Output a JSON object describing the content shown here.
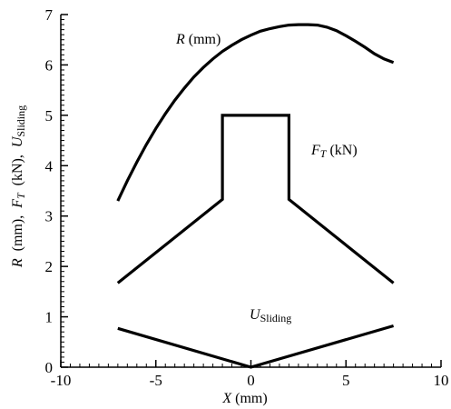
{
  "chart_data": {
    "type": "line",
    "xlabel": {
      "var": "X",
      "unit": " (mm)"
    },
    "ylabel": {
      "r_var": "R",
      "r_unit": "  (mm),  ",
      "ft_var": "F",
      "ft_sub": "T",
      "ft_unit": "  (kN),  ",
      "u_var": "U",
      "u_sub": "Sliding"
    },
    "xlim": [
      -10,
      10
    ],
    "ylim": [
      0,
      7
    ],
    "xticks": [
      "-10",
      "-5",
      "0",
      "5",
      "10"
    ],
    "yticks": [
      "0",
      "1",
      "2",
      "3",
      "4",
      "5",
      "6",
      "7"
    ],
    "grid": false,
    "legend": "none",
    "series": [
      {
        "label": {
          "var": "R",
          "unit": " (mm)"
        },
        "color": "#000000",
        "x": [
          -7,
          -6.5,
          -6,
          -5.5,
          -5,
          -4.5,
          -4,
          -3.5,
          -3,
          -2.5,
          -2,
          -1.5,
          -1,
          -0.5,
          0,
          0.5,
          1,
          1.5,
          2,
          2.5,
          3,
          3.5,
          4,
          4.5,
          5,
          5.5,
          6,
          6.5,
          7,
          7.5
        ],
        "y": [
          3.3,
          3.7,
          4.07,
          4.42,
          4.74,
          5.03,
          5.3,
          5.54,
          5.76,
          5.95,
          6.12,
          6.27,
          6.39,
          6.5,
          6.59,
          6.67,
          6.72,
          6.76,
          6.79,
          6.8,
          6.8,
          6.79,
          6.75,
          6.68,
          6.58,
          6.47,
          6.35,
          6.22,
          6.12,
          6.05
        ]
      },
      {
        "label": {
          "var": "F",
          "sub": "T",
          "unit": " (kN)"
        },
        "color": "#000000",
        "x": [
          -7,
          -1.5,
          -1.5,
          2,
          2,
          7.5
        ],
        "y": [
          1.67,
          3.33,
          5,
          5,
          3.33,
          1.67
        ]
      },
      {
        "label": {
          "var": "U",
          "sub": "Sliding"
        },
        "color": "#000000",
        "x": [
          -7,
          0,
          7.5
        ],
        "y": [
          0.77,
          0,
          0.82
        ]
      }
    ]
  }
}
